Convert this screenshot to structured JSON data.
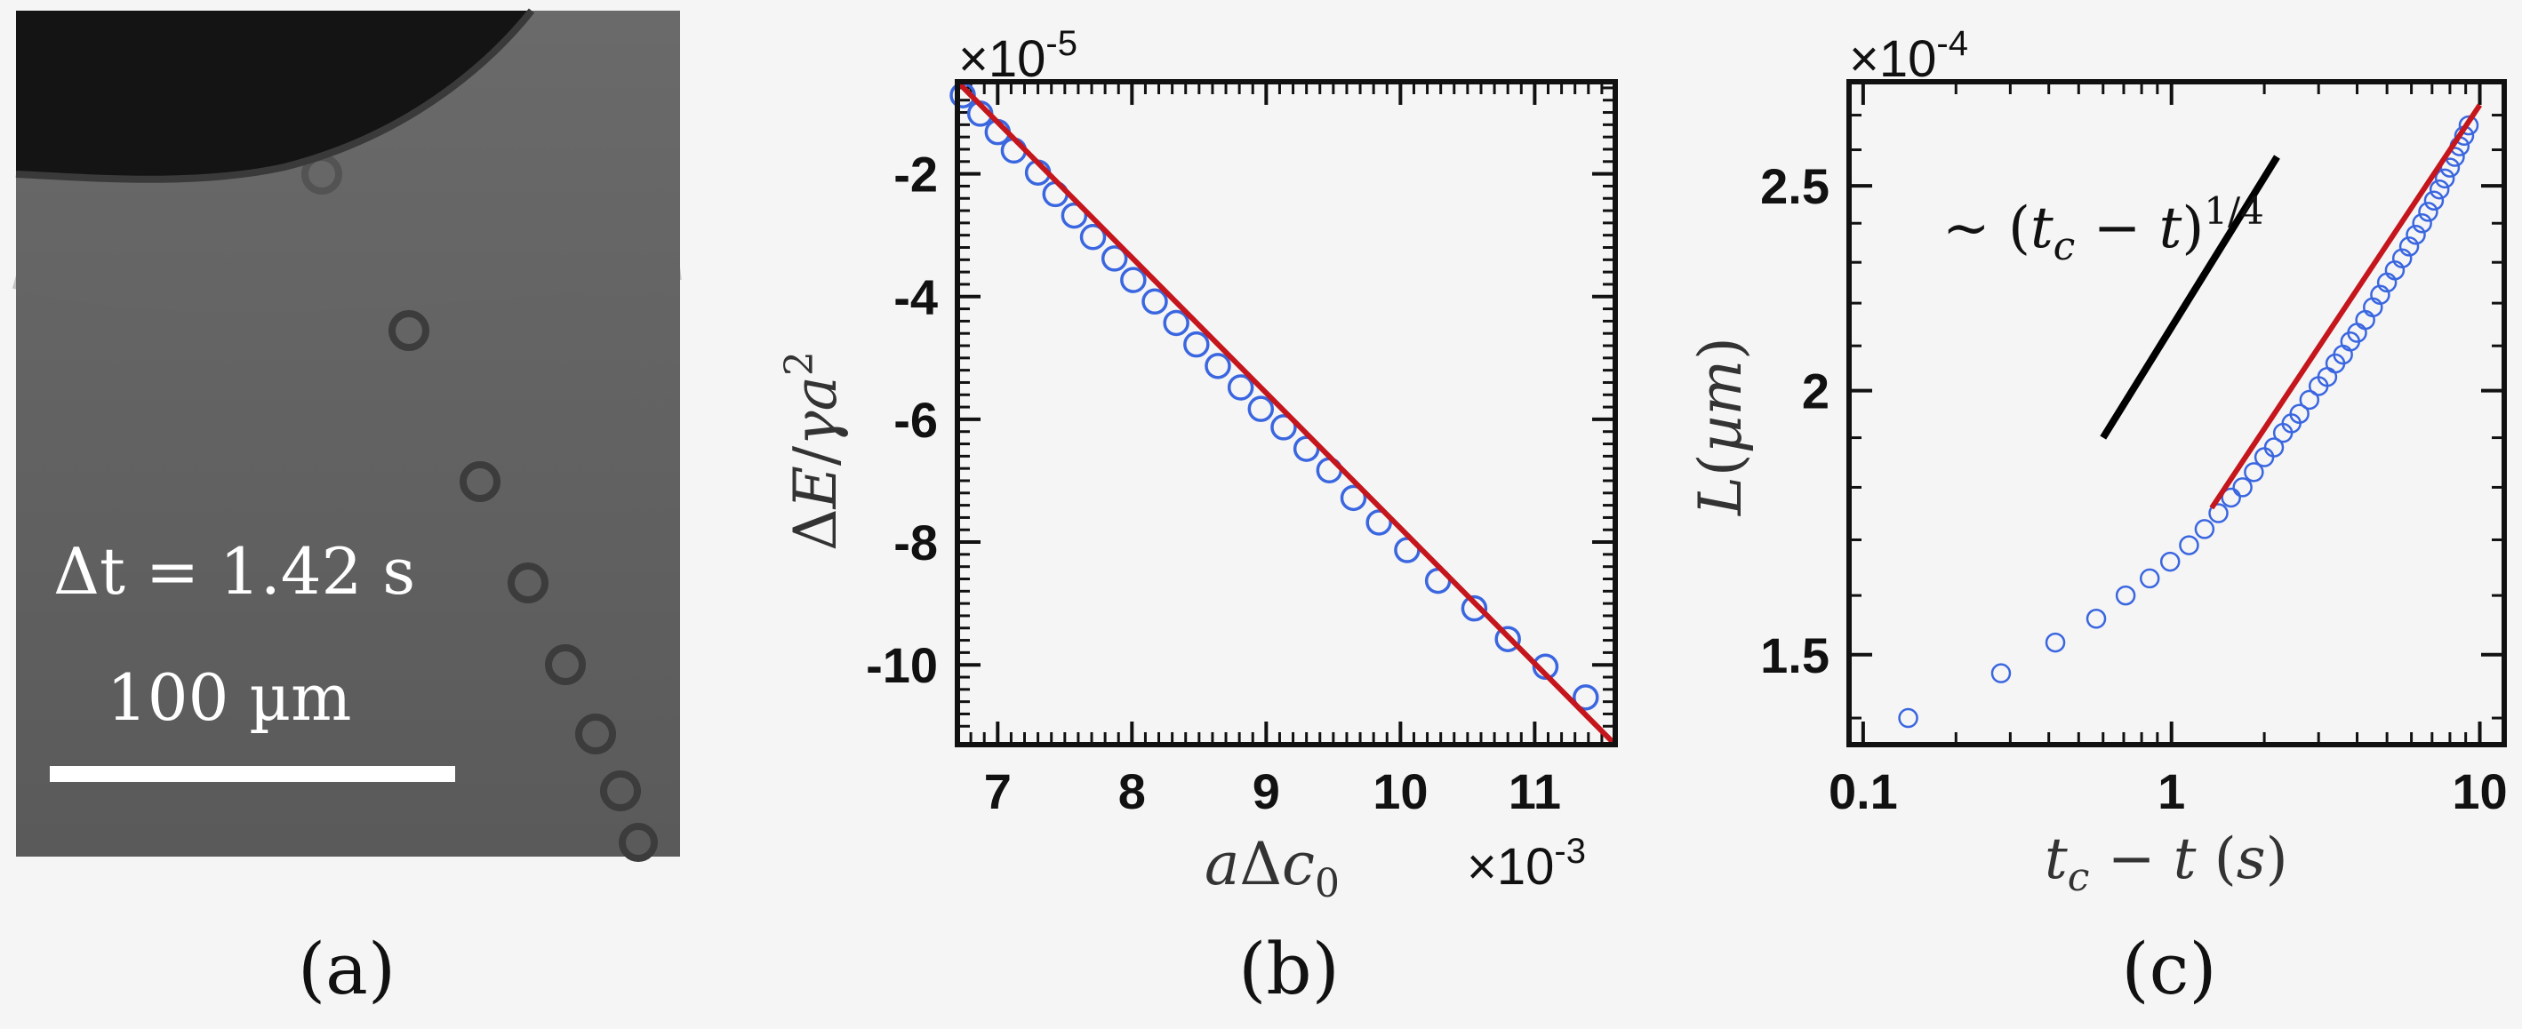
{
  "panel_labels": [
    "(a)",
    "(b)",
    "(c)"
  ],
  "micrograph": {
    "time_label": "Δt = 1.42 s",
    "scale_label": "100 µm"
  },
  "chart_data": [
    {
      "type": "scatter",
      "panel": "b",
      "xlabel": "aΔc0",
      "ylabel": "ΔE/γa²",
      "x_multiplier": "×10",
      "x_exponent": "-3",
      "y_multiplier": "×10",
      "y_exponent": "-5",
      "xlim": [
        6.7,
        11.6
      ],
      "ylim": [
        -11.3,
        -0.5
      ],
      "xticks": [
        7,
        8,
        9,
        10,
        11
      ],
      "yticks": [
        -2,
        -4,
        -6,
        -8,
        -10
      ],
      "series": [
        {
          "marker": "circle",
          "color": "#3a66e0",
          "x": [
            6.74,
            6.87,
            7.0,
            7.12,
            7.3,
            7.43,
            7.57,
            7.71,
            7.87,
            8.01,
            8.17,
            8.33,
            8.48,
            8.64,
            8.81,
            8.96,
            9.13,
            9.3,
            9.47,
            9.65,
            9.84,
            10.05,
            10.28,
            10.55,
            10.8,
            11.08,
            11.38
          ],
          "y": [
            -0.72,
            -1.02,
            -1.32,
            -1.62,
            -1.98,
            -2.33,
            -2.68,
            -3.03,
            -3.38,
            -3.73,
            -4.08,
            -4.43,
            -4.78,
            -5.13,
            -5.48,
            -5.83,
            -6.13,
            -6.48,
            -6.83,
            -7.28,
            -7.68,
            -8.13,
            -8.63,
            -9.08,
            -9.58,
            -10.03,
            -10.53
          ]
        }
      ],
      "fit_line": {
        "color": "#c4161c",
        "x": [
          6.7,
          11.6
        ],
        "y": [
          -0.5,
          -11.3
        ]
      }
    },
    {
      "type": "scatter",
      "panel": "c",
      "xscale": "log",
      "yscale": "log",
      "xlabel": "tc − t (s)",
      "ylabel": "L(µm)",
      "y_multiplier": "×10",
      "y_exponent": "-4",
      "xlim": [
        0.09,
        12
      ],
      "ylim": [
        1.36,
        2.8
      ],
      "xticks": [
        0.1,
        1,
        10
      ],
      "xtick_labels": [
        "0.1",
        "1",
        "10"
      ],
      "yticks": [
        1.5,
        2,
        2.5
      ],
      "ytick_labels": [
        "1.5",
        "2",
        "2.5"
      ],
      "annotation": {
        "text": "~ (tc − t)^1/4",
        "slope": 0.25
      },
      "series": [
        {
          "marker": "circle",
          "color": "#3a66e0",
          "x": [
            0.14,
            0.28,
            0.42,
            0.57,
            0.71,
            0.85,
            0.99,
            1.14,
            1.28,
            1.42,
            1.56,
            1.7,
            1.85,
            2.0,
            2.15,
            2.3,
            2.45,
            2.6,
            2.8,
            3.0,
            3.2,
            3.4,
            3.6,
            3.8,
            4.0,
            4.25,
            4.5,
            4.75,
            5.0,
            5.3,
            5.6,
            5.9,
            6.2,
            6.5,
            6.8,
            7.1,
            7.4,
            7.7,
            8.0,
            8.3,
            8.6,
            8.9,
            9.2
          ],
          "y": [
            1.4,
            1.47,
            1.52,
            1.56,
            1.6,
            1.63,
            1.66,
            1.69,
            1.72,
            1.75,
            1.78,
            1.8,
            1.83,
            1.86,
            1.88,
            1.91,
            1.93,
            1.95,
            1.98,
            2.01,
            2.03,
            2.06,
            2.08,
            2.11,
            2.13,
            2.16,
            2.19,
            2.22,
            2.25,
            2.28,
            2.31,
            2.34,
            2.37,
            2.4,
            2.43,
            2.46,
            2.49,
            2.52,
            2.55,
            2.58,
            2.61,
            2.64,
            2.67
          ]
        }
      ],
      "fit_line": {
        "color": "#c4161c",
        "x": [
          1.35,
          10.0
        ],
        "y": [
          1.76,
          2.73
        ]
      },
      "slope_line": {
        "color": "#000000",
        "x": [
          0.6,
          2.2
        ],
        "y": [
          1.9,
          2.58
        ]
      }
    }
  ]
}
